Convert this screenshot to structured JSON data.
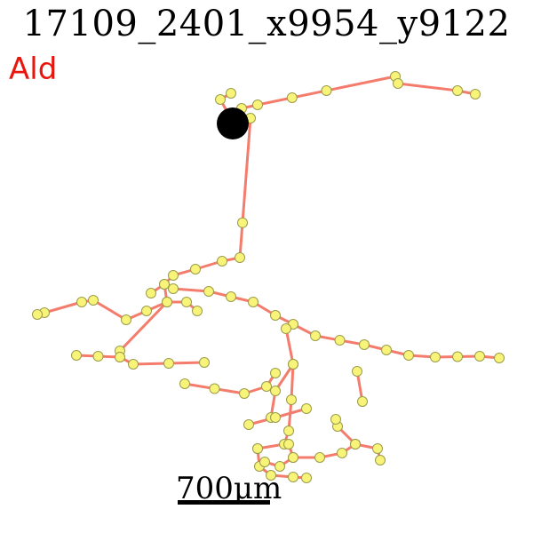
{
  "title": "17109_2401_x9954_y9122",
  "label": "Ald",
  "scale_bar": {
    "text": "700μm"
  },
  "colors": {
    "edge": "#f47c6c",
    "node_fill": "#f8f47a",
    "node_stroke": "#9b9b4a",
    "soma": "#000000",
    "label": "#e8160c"
  }
}
